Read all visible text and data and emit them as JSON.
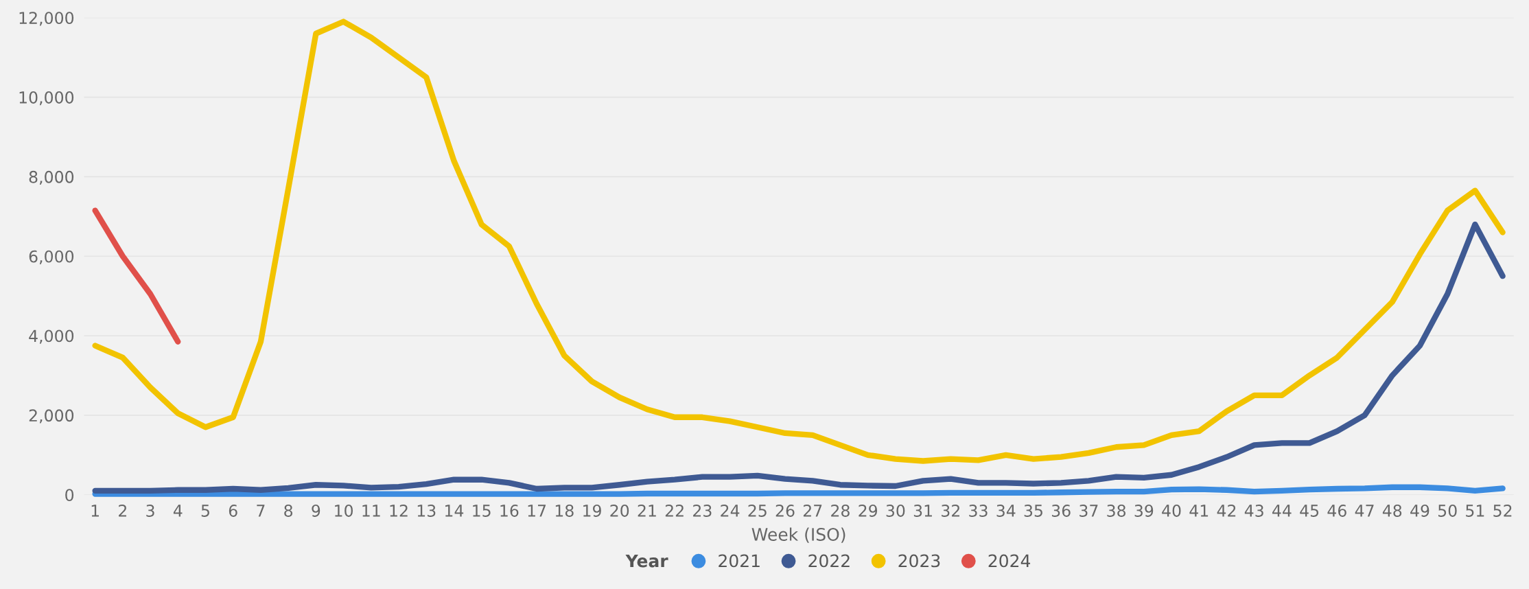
{
  "chart_data": {
    "type": "line",
    "xlabel": "Week (ISO)",
    "legend_title": "Year",
    "categories": [
      "1",
      "2",
      "3",
      "4",
      "5",
      "6",
      "7",
      "8",
      "9",
      "10",
      "11",
      "12",
      "13",
      "14",
      "15",
      "16",
      "17",
      "18",
      "19",
      "20",
      "21",
      "22",
      "23",
      "24",
      "25",
      "26",
      "27",
      "28",
      "29",
      "30",
      "31",
      "32",
      "33",
      "34",
      "35",
      "36",
      "37",
      "38",
      "39",
      "40",
      "41",
      "42",
      "43",
      "44",
      "45",
      "46",
      "47",
      "48",
      "49",
      "50",
      "51",
      "52"
    ],
    "series": [
      {
        "name": "2021",
        "color": "#3c8ce0",
        "values": [
          20,
          20,
          20,
          20,
          20,
          20,
          20,
          20,
          20,
          20,
          20,
          20,
          20,
          20,
          20,
          20,
          20,
          20,
          20,
          20,
          30,
          30,
          30,
          30,
          30,
          40,
          40,
          40,
          40,
          40,
          40,
          50,
          50,
          50,
          50,
          60,
          70,
          80,
          80,
          130,
          140,
          120,
          80,
          100,
          130,
          150,
          160,
          190,
          190,
          160,
          100,
          160
        ]
      },
      {
        "name": "2022",
        "color": "#3f5a93",
        "values": [
          100,
          100,
          100,
          120,
          120,
          150,
          120,
          170,
          250,
          230,
          180,
          200,
          270,
          380,
          380,
          300,
          150,
          180,
          180,
          250,
          330,
          380,
          450,
          450,
          480,
          400,
          350,
          250,
          230,
          220,
          350,
          400,
          300,
          300,
          280,
          300,
          350,
          450,
          430,
          500,
          700,
          950,
          1250,
          1300,
          1300,
          1600,
          2000,
          3000,
          3750,
          5050,
          6800,
          5500
        ]
      },
      {
        "name": "2023",
        "color": "#f2c300",
        "values": [
          3750,
          3450,
          2700,
          2050,
          1700,
          1950,
          3850,
          7700,
          11600,
          11900,
          11500,
          11000,
          10500,
          8400,
          6800,
          6250,
          4800,
          3500,
          2850,
          2450,
          2150,
          1950,
          1950,
          1850,
          1700,
          1550,
          1500,
          1250,
          1000,
          900,
          850,
          900,
          870,
          1000,
          900,
          950,
          1050,
          1200,
          1250,
          1500,
          1600,
          2100,
          2500,
          2500,
          3000,
          3450,
          4150,
          4850,
          6050,
          7150,
          7650,
          6600
        ]
      },
      {
        "name": "2024",
        "color": "#e0504a",
        "values": [
          7150,
          6000,
          5050,
          3850,
          null,
          null,
          null,
          null,
          null,
          null,
          null,
          null,
          null,
          null,
          null,
          null,
          null,
          null,
          null,
          null,
          null,
          null,
          null,
          null,
          null,
          null,
          null,
          null,
          null,
          null,
          null,
          null,
          null,
          null,
          null,
          null,
          null,
          null,
          null,
          null,
          null,
          null,
          null,
          null,
          null,
          null,
          null,
          null,
          null,
          null,
          null,
          null
        ]
      }
    ],
    "ylim": [
      0,
      12000
    ],
    "yticks": [
      {
        "value": 0,
        "label": "0"
      },
      {
        "value": 2000,
        "label": "2,000"
      },
      {
        "value": 4000,
        "label": "4,000"
      },
      {
        "value": 6000,
        "label": "6,000"
      },
      {
        "value": 8000,
        "label": "8,000"
      },
      {
        "value": 10000,
        "label": "10,000"
      },
      {
        "value": 12000,
        "label": "12,000"
      }
    ],
    "grid": "y",
    "legend": "bottom"
  }
}
